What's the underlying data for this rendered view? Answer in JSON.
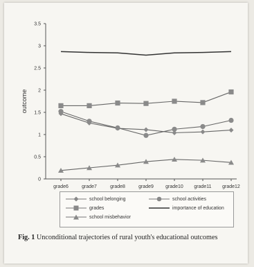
{
  "figure": {
    "caption_label": "Fig. 1",
    "caption_text": "Unconditional trajectories of rural youth's educational outcomes"
  },
  "chart_data": {
    "type": "line",
    "title": "",
    "xlabel": "",
    "ylabel": "outcome",
    "categories": [
      "grade6",
      "grade7",
      "grade8",
      "grade9",
      "grade10",
      "grade11",
      "grade12"
    ],
    "ylim": [
      0,
      3.5
    ],
    "yticks": [
      "0",
      "0.5",
      "1",
      "1.5",
      "2",
      "2.5",
      "3",
      "3.5"
    ],
    "ytick_values": [
      0,
      0.5,
      1,
      1.5,
      2,
      2.5,
      3,
      3.5
    ],
    "grid": false,
    "legend_position": "bottom",
    "series": [
      {
        "name": "school belonging",
        "marker": "diamond",
        "values": [
          1.47,
          1.26,
          1.14,
          1.11,
          1.04,
          1.06,
          1.1
        ]
      },
      {
        "name": "school activities",
        "marker": "circle",
        "values": [
          1.52,
          1.3,
          1.15,
          0.98,
          1.12,
          1.18,
          1.32
        ]
      },
      {
        "name": "grades",
        "marker": "square",
        "values": [
          1.65,
          1.65,
          1.71,
          1.7,
          1.75,
          1.72,
          1.96
        ]
      },
      {
        "name": "importance of education",
        "marker": "none",
        "values": [
          2.87,
          2.85,
          2.84,
          2.79,
          2.84,
          2.85,
          2.87
        ]
      },
      {
        "name": "school misbehavior",
        "marker": "triangle",
        "values": [
          0.19,
          0.25,
          0.31,
          0.39,
          0.44,
          0.42,
          0.37
        ]
      }
    ]
  }
}
